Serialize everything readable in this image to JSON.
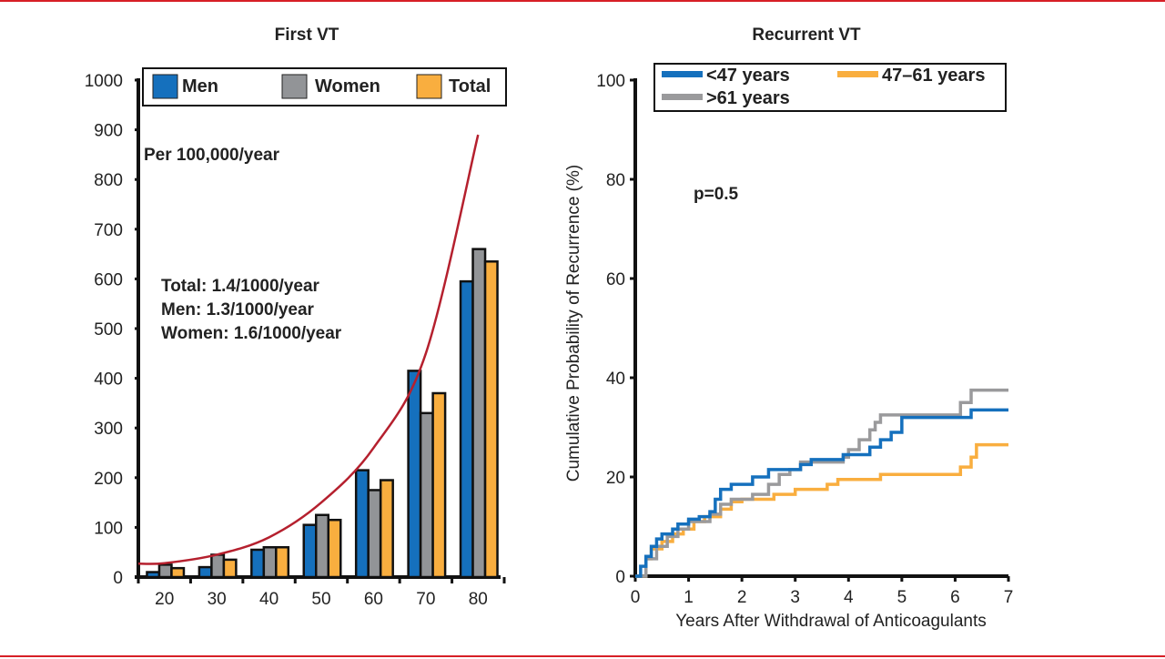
{
  "colors": {
    "frame": "#d71f26",
    "men": "#1570bd",
    "women": "#929497",
    "total": "#f9ae3f",
    "curve": "#b5202e",
    "young": "#1570bd",
    "mid": "#f9ae3f",
    "old": "#9a9a9c"
  },
  "chart_data": [
    {
      "type": "bar",
      "title": "First VT",
      "xlabel": "",
      "ylabel": "",
      "annotation_unit": "Per 100,000/year",
      "annotation_rates": [
        "Total: 1.4/1000/year",
        "Men: 1.3/1000/year",
        "Women: 1.6/1000/year"
      ],
      "categories": [
        "20",
        "30",
        "40",
        "50",
        "60",
        "70",
        "80"
      ],
      "ylim": [
        0,
        1000
      ],
      "yticks": [
        0,
        100,
        200,
        300,
        400,
        500,
        600,
        700,
        800,
        900,
        1000
      ],
      "legend": "top",
      "series": [
        {
          "name": "Men",
          "key": "men",
          "values": [
            10,
            20,
            55,
            105,
            215,
            415,
            595
          ]
        },
        {
          "name": "Women",
          "key": "women",
          "values": [
            25,
            45,
            60,
            125,
            175,
            330,
            660
          ]
        },
        {
          "name": "Total",
          "key": "total",
          "values": [
            18,
            35,
            60,
            115,
            195,
            370,
            635
          ]
        }
      ],
      "trend_curve": {
        "name": "exponential fit",
        "points": [
          [
            15,
            27
          ],
          [
            20,
            28
          ],
          [
            30,
            45
          ],
          [
            40,
            80
          ],
          [
            50,
            150
          ],
          [
            60,
            260
          ],
          [
            70,
            450
          ],
          [
            80,
            890
          ]
        ]
      }
    },
    {
      "type": "line",
      "title": "Recurrent VT",
      "xlabel": "Years After Withdrawal of Anticoagulants",
      "ylabel": "Cumulative Probability of Recurrence (%)",
      "annotation": "p=0.5",
      "xlim": [
        0,
        7
      ],
      "ylim": [
        0,
        100
      ],
      "xticks": [
        0,
        1,
        2,
        3,
        4,
        5,
        6,
        7
      ],
      "yticks": [
        0,
        20,
        40,
        60,
        80,
        100
      ],
      "legend": "top",
      "series": [
        {
          "name": "<47 years",
          "key": "young",
          "steps": [
            [
              0,
              0
            ],
            [
              0.1,
              2
            ],
            [
              0.2,
              4
            ],
            [
              0.3,
              6
            ],
            [
              0.4,
              7.5
            ],
            [
              0.5,
              8.5
            ],
            [
              0.7,
              9.5
            ],
            [
              0.8,
              10.5
            ],
            [
              1.0,
              11.5
            ],
            [
              1.2,
              12
            ],
            [
              1.4,
              13
            ],
            [
              1.5,
              15.5
            ],
            [
              1.6,
              17.5
            ],
            [
              1.8,
              18.5
            ],
            [
              2.2,
              20
            ],
            [
              2.5,
              21.5
            ],
            [
              3.1,
              22.5
            ],
            [
              3.3,
              23.5
            ],
            [
              3.9,
              24.5
            ],
            [
              4.4,
              26
            ],
            [
              4.6,
              27.5
            ],
            [
              4.8,
              29
            ],
            [
              5.0,
              32
            ],
            [
              6.3,
              33.5
            ],
            [
              7.0,
              33.5
            ]
          ]
        },
        {
          "name": "47–61 years",
          "key": "mid",
          "steps": [
            [
              0,
              0
            ],
            [
              0.2,
              3.5
            ],
            [
              0.3,
              5.5
            ],
            [
              0.5,
              7
            ],
            [
              0.7,
              8.5
            ],
            [
              0.9,
              9.5
            ],
            [
              1.1,
              11
            ],
            [
              1.3,
              12
            ],
            [
              1.6,
              13.5
            ],
            [
              1.8,
              15
            ],
            [
              2.0,
              15.5
            ],
            [
              2.6,
              16.5
            ],
            [
              3.0,
              17.5
            ],
            [
              3.6,
              18.5
            ],
            [
              3.8,
              19.5
            ],
            [
              4.6,
              20.5
            ],
            [
              6.1,
              22
            ],
            [
              6.3,
              24
            ],
            [
              6.4,
              26.5
            ],
            [
              7.0,
              26.5
            ]
          ]
        },
        {
          "name": ">61 years",
          "key": "old",
          "steps": [
            [
              0,
              0
            ],
            [
              0.2,
              3.5
            ],
            [
              0.4,
              6
            ],
            [
              0.6,
              8
            ],
            [
              0.8,
              9.5
            ],
            [
              1.0,
              11
            ],
            [
              1.4,
              12.5
            ],
            [
              1.6,
              14.5
            ],
            [
              1.8,
              15.5
            ],
            [
              2.2,
              16.5
            ],
            [
              2.5,
              18.5
            ],
            [
              2.7,
              20.5
            ],
            [
              2.9,
              21.5
            ],
            [
              3.1,
              23
            ],
            [
              3.9,
              24
            ],
            [
              4.0,
              25.5
            ],
            [
              4.2,
              27.5
            ],
            [
              4.4,
              29.5
            ],
            [
              4.5,
              31
            ],
            [
              4.6,
              32.5
            ],
            [
              6.1,
              35
            ],
            [
              6.3,
              37.5
            ],
            [
              7.0,
              37.5
            ]
          ]
        }
      ]
    }
  ]
}
